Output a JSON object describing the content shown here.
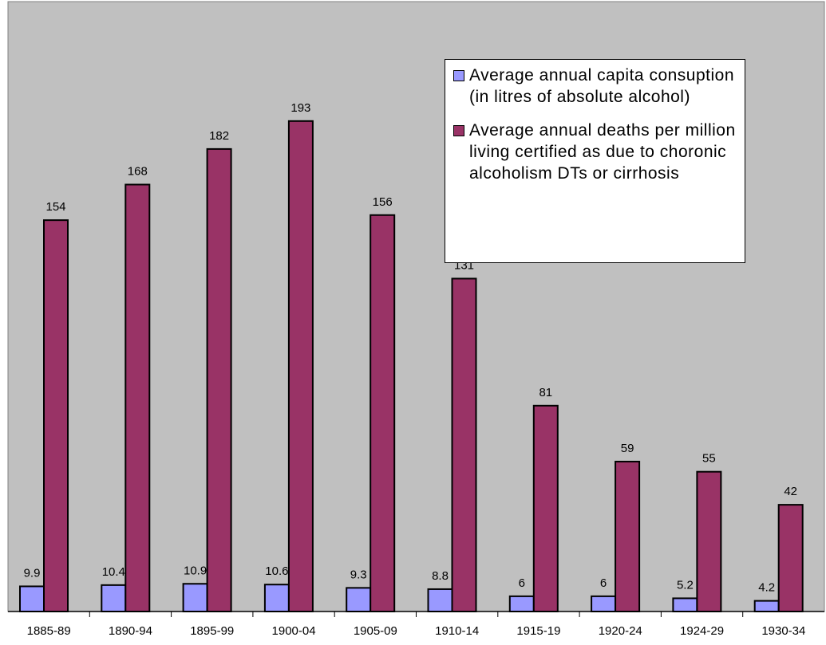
{
  "chart_data": {
    "type": "bar",
    "categories": [
      "1885-89",
      "1890-94",
      "1895-99",
      "1900-04",
      "1905-09",
      "1910-14",
      "1915-19",
      "1920-24",
      "1924-29",
      "1930-34"
    ],
    "series": [
      {
        "name": "Average annual capita consuption (in litres of absolute alcohol)",
        "values": [
          9.9,
          10.4,
          10.9,
          10.6,
          9.3,
          8.8,
          6,
          6,
          5.2,
          4.2
        ],
        "labels": [
          "9.9",
          "10.4",
          "10.9",
          "10.6",
          "9.3",
          "8.8",
          "6",
          "6",
          "5.2",
          "4.2"
        ],
        "color": "#9999ff"
      },
      {
        "name": "Average annual deaths per million living certified as due to choronic alcoholism DTs or cirrhosis",
        "values": [
          154,
          168,
          182,
          193,
          156,
          131,
          81,
          59,
          55,
          42
        ],
        "labels": [
          "154",
          "168",
          "182",
          "193",
          "156",
          "131",
          "81",
          "59",
          "55",
          "42"
        ],
        "color": "#993366"
      }
    ],
    "ylim": [
      0,
      240
    ],
    "plot_background": "#c0c0c0",
    "grid": false,
    "legend_position": "top-right",
    "title": "",
    "xlabel": "",
    "ylabel": ""
  }
}
